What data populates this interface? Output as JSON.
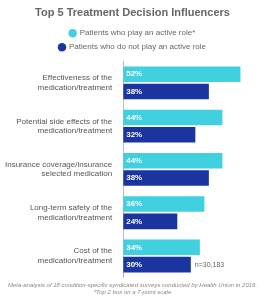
{
  "chart_data": {
    "type": "bar",
    "orientation": "horizontal",
    "title": "Top 5 Treatment Decision Influencers",
    "categories": [
      "Effectiveness of the\nmedication/treatment",
      "Potential side effects of the\nmedication/treatment",
      "Insurance coverage/insurance\nselected medication",
      "Long-term safety of the\nmedication/treatment",
      "Cost of the\nmedication/treatment"
    ],
    "series": [
      {
        "name": "Patients who play an active role*",
        "color": "#40d0e0",
        "values": [
          52,
          44,
          44,
          36,
          34
        ],
        "value_labels": [
          "52%",
          "44%",
          "44%",
          "36%",
          "34%"
        ]
      },
      {
        "name": "Patients who do not play an active role",
        "color": "#1a35a0",
        "values": [
          38,
          32,
          38,
          24,
          30
        ],
        "value_labels": [
          "38%",
          "32%",
          "38%",
          "24%",
          "30%"
        ]
      }
    ],
    "xlim": [
      0,
      62
    ],
    "tick_labels": false,
    "grid": false,
    "legend": "top",
    "data_labels": true,
    "annotations": [
      "n=30,183"
    ],
    "footnotes": [
      "Meta-analysis of 18 condition-specific syndicated surveys conducted by Health Union in 2019.",
      "*Top 2 box on a 7-point scale"
    ]
  }
}
